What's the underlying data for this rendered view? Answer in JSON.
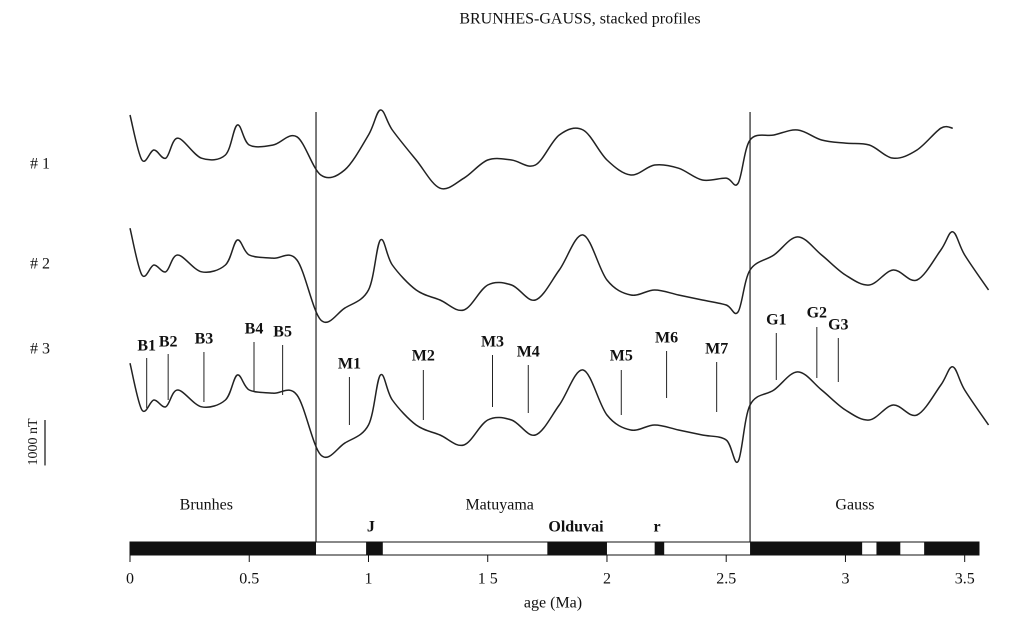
{
  "chart_data": {
    "type": "line",
    "title": "BRUNHES-GAUSS, stacked profiles",
    "xlabel": "age (Ma)",
    "xlim": [
      0,
      3.56
    ],
    "xticks": [
      0,
      0.5,
      1,
      {
        "value": 1.5,
        "label": "1 5"
      },
      2,
      2.5,
      3,
      3.5
    ],
    "scale_bar": {
      "value": 1000,
      "label": "1000 nT"
    },
    "x": [
      0,
      0.05,
      0.1,
      0.15,
      0.2,
      0.3,
      0.4,
      0.45,
      0.5,
      0.6,
      0.7,
      0.8,
      0.9,
      1.0,
      1.05,
      1.1,
      1.2,
      1.3,
      1.4,
      1.5,
      1.6,
      1.7,
      1.8,
      1.9,
      2.0,
      2.1,
      2.2,
      2.3,
      2.4,
      2.5,
      2.55,
      2.6,
      2.7,
      2.8,
      2.9,
      3.0,
      3.1,
      3.2,
      3.3,
      3.4,
      3.45,
      3.5,
      3.6
    ],
    "series": [
      {
        "name": "# 1",
        "color": "#222",
        "values": [
          770,
          -220,
          0,
          -180,
          260,
          -180,
          -110,
          550,
          110,
          110,
          290,
          -550,
          -440,
          330,
          880,
          440,
          -220,
          -840,
          -620,
          -220,
          -220,
          -330,
          330,
          440,
          -220,
          -550,
          -330,
          -400,
          -660,
          -620,
          -730,
          220,
          330,
          440,
          220,
          150,
          110,
          -180,
          0,
          480,
          480,
          null,
          null
        ]
      },
      {
        "name": "# 2",
        "color": "#222",
        "values": [
          810,
          -220,
          0,
          -150,
          220,
          -150,
          0,
          550,
          220,
          150,
          110,
          -1210,
          -950,
          -550,
          550,
          0,
          -550,
          -770,
          -990,
          -440,
          -440,
          -770,
          -110,
          660,
          -330,
          -660,
          -550,
          -660,
          -770,
          -880,
          -1030,
          -110,
          220,
          620,
          220,
          -220,
          -440,
          -110,
          -330,
          330,
          730,
          220,
          -550
        ]
      },
      {
        "name": "# 3",
        "color": "#222",
        "values": [
          810,
          -220,
          0,
          -150,
          220,
          -150,
          0,
          550,
          220,
          150,
          110,
          -1210,
          -950,
          -550,
          550,
          0,
          -550,
          -770,
          -990,
          -440,
          -440,
          -770,
          -110,
          660,
          -330,
          -660,
          -550,
          -660,
          -770,
          -880,
          -1350,
          -110,
          220,
          620,
          220,
          -220,
          -440,
          -110,
          -330,
          330,
          730,
          220,
          -550
        ]
      }
    ],
    "reversals": [
      0.78,
      2.6
    ],
    "anomalies": [
      {
        "label": "B1",
        "x": 0.07
      },
      {
        "label": "B2",
        "x": 0.16
      },
      {
        "label": "B3",
        "x": 0.31
      },
      {
        "label": "B4",
        "x": 0.52
      },
      {
        "label": "B5",
        "x": 0.64
      },
      {
        "label": "M1",
        "x": 0.92
      },
      {
        "label": "M2",
        "x": 1.23
      },
      {
        "label": "M3",
        "x": 1.52
      },
      {
        "label": "M4",
        "x": 1.67
      },
      {
        "label": "M5",
        "x": 2.06
      },
      {
        "label": "M6",
        "x": 2.25
      },
      {
        "label": "M7",
        "x": 2.46
      },
      {
        "label": "G1",
        "x": 2.71
      },
      {
        "label": "G2",
        "x": 2.88
      },
      {
        "label": "G3",
        "x": 2.97
      }
    ],
    "chrons": [
      {
        "label": "Brunhes",
        "x": 0.32
      },
      {
        "label": "Matuyama",
        "x": 1.55
      },
      {
        "label": "Gauss",
        "x": 3.04
      }
    ],
    "subchrons": [
      {
        "label": "J",
        "x": 1.01
      },
      {
        "label": "Olduvai",
        "x": 1.87
      },
      {
        "label": "r",
        "x": 2.21
      }
    ],
    "normal_polarity": [
      [
        0,
        0.78
      ],
      [
        0.99,
        1.06
      ],
      [
        1.75,
        2.0
      ],
      [
        2.2,
        2.24
      ],
      [
        2.6,
        3.07
      ],
      [
        3.13,
        3.23
      ],
      [
        3.33,
        3.56
      ]
    ]
  }
}
